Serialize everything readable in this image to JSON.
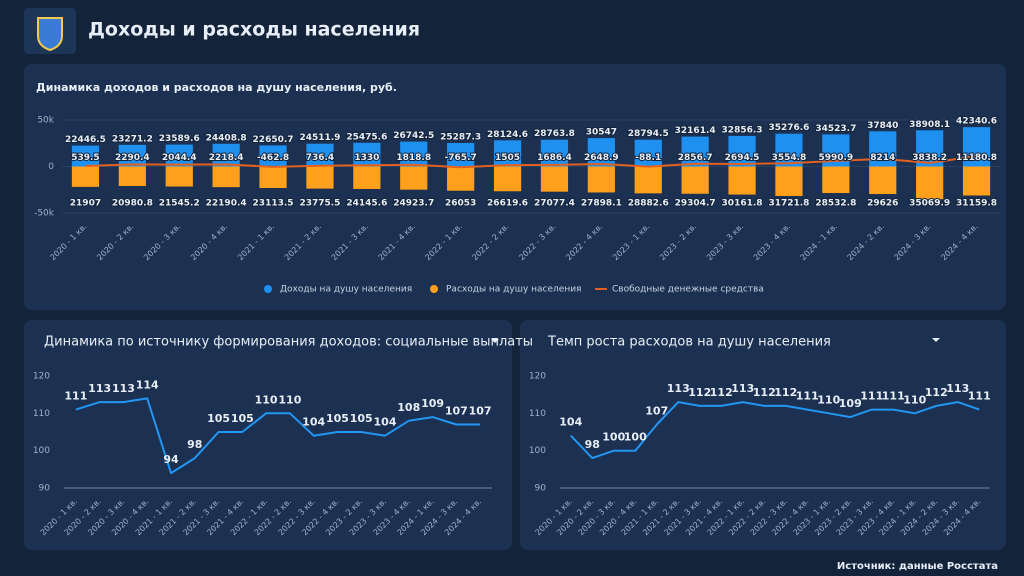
{
  "header": {
    "title": "Доходы и расходы населения"
  },
  "source": "Источник: данные Росстата",
  "chart_data": [
    {
      "type": "bar",
      "title": "Динамика доходов и расходов на душу населения, руб.",
      "categories": [
        "2020 - 1 кв.",
        "2020 - 2 кв.",
        "2020 - 3 кв.",
        "2020 - 4 кв.",
        "2021 - 1 кв.",
        "2021 - 2 кв.",
        "2021 - 3 кв.",
        "2021 - 4 кв.",
        "2022 - 1 кв.",
        "2022 - 2 кв.",
        "2022 - 3 кв.",
        "2022 - 4 кв.",
        "2023 - 1 кв.",
        "2023 - 2 кв.",
        "2023 - 3 кв.",
        "2023 - 4 кв.",
        "2024 - 1 кв.",
        "2024 - 2 кв.",
        "2024 - 3 кв.",
        "2024 - 4 кв."
      ],
      "series": [
        {
          "name": "Доходы на душу населения",
          "color": "#1e90f0",
          "values": [
            22446.5,
            23271.2,
            23589.6,
            24408.8,
            22650.7,
            24511.9,
            25475.6,
            26742.5,
            25287.3,
            28124.6,
            28763.8,
            30547,
            28794.5,
            32161.4,
            32856.3,
            35276.6,
            34523.7,
            37840,
            38908.1,
            42340.6
          ]
        },
        {
          "name": "Расходы на душу населения",
          "color": "#ffa01c",
          "values": [
            -21907,
            -20980.8,
            -21545.2,
            -22190.4,
            -23113.5,
            -23775.5,
            -24145.6,
            -24923.7,
            -26053,
            -26619.6,
            -27077.4,
            -27898.1,
            -28882.6,
            -29304.7,
            -30161.8,
            -31721.8,
            -28532.8,
            -29626,
            -35069.9,
            -31159.8
          ],
          "value_labels": [
            "21907",
            "20980.8",
            "21545.2",
            "22190.4",
            "23113.5",
            "23775.5",
            "24145.6",
            "24923.7",
            "26053",
            "26619.6",
            "27077.4",
            "27898.1",
            "28882.6",
            "29304.7",
            "30161.8",
            "31721.8",
            "28532.8",
            "29626",
            "35069.9",
            "31159.8"
          ]
        },
        {
          "name": "Свободные денежные средства",
          "color": "#e2601f",
          "type": "line",
          "values": [
            539.5,
            2290.4,
            2044.4,
            2218.4,
            -462.8,
            736.4,
            1330,
            1818.8,
            -765.7,
            1505,
            1686.4,
            2648.9,
            -88.1,
            2856.7,
            2694.5,
            3554.8,
            5990.9,
            8214,
            3838.2,
            11180.8
          ]
        }
      ],
      "ylim": [
        -50000,
        50000
      ],
      "yticks": [
        {
          "value": 50000,
          "label": "50k"
        },
        0,
        {
          "value": -50000,
          "label": "-50k"
        }
      ],
      "grid": true,
      "legend": "bottom"
    },
    {
      "type": "line",
      "title": "Динамика по источнику формирования доходов: социальные выплаты",
      "categories": [
        "2020 - 1 кв.",
        "2020 - 2 кв.",
        "2020 - 3 кв.",
        "2020 - 4 кв.",
        "2021 - 1 кв.",
        "2021 - 2 кв.",
        "2021 - 3 кв.",
        "2021 - 4 кв.",
        "2022 - 1 кв.",
        "2022 - 2 кв.",
        "2022 - 3 кв.",
        "2022 - 4 кв.",
        "2023 - 2 кв.",
        "2023 - 3 кв.",
        "2023 - 4 кв.",
        "2024 - 1 кв.",
        "2024 - 3 кв.",
        "2024 - 4 кв."
      ],
      "values": [
        111,
        113,
        113,
        114,
        94,
        98,
        105,
        105,
        110,
        110,
        104,
        105,
        105,
        104,
        108,
        109,
        107,
        107
      ],
      "color": "#2196f3",
      "ylim": [
        90,
        120
      ],
      "yticks": [
        90,
        100,
        110,
        120
      ],
      "grid": false
    },
    {
      "type": "line",
      "title": "Темп роста расходов на душу населения",
      "categories": [
        "2020 - 1 кв.",
        "2020 - 2 кв.",
        "2020 - 3 кв.",
        "2020 - 4 кв.",
        "2021 - 1 кв.",
        "2021 - 2 кв.",
        "2021 - 3 кв.",
        "2021 - 4 кв.",
        "2022 - 1 кв.",
        "2022 - 2 кв.",
        "2022 - 3 кв.",
        "2022 - 4 кв.",
        "2023 - 1 кв.",
        "2023 - 2 кв.",
        "2023 - 3 кв.",
        "2023 - 4 кв.",
        "2024 - 1 кв.",
        "2024 - 2 кв.",
        "2024 - 3 кв.",
        "2024 - 4 кв."
      ],
      "values": [
        104,
        98,
        100,
        100,
        107,
        113,
        112,
        112,
        113,
        112,
        112,
        111,
        110,
        109,
        111,
        111,
        110,
        112,
        113,
        111
      ],
      "color": "#2196f3",
      "ylim": [
        90,
        120
      ],
      "yticks": [
        90,
        100,
        110,
        120
      ],
      "grid": false
    }
  ]
}
